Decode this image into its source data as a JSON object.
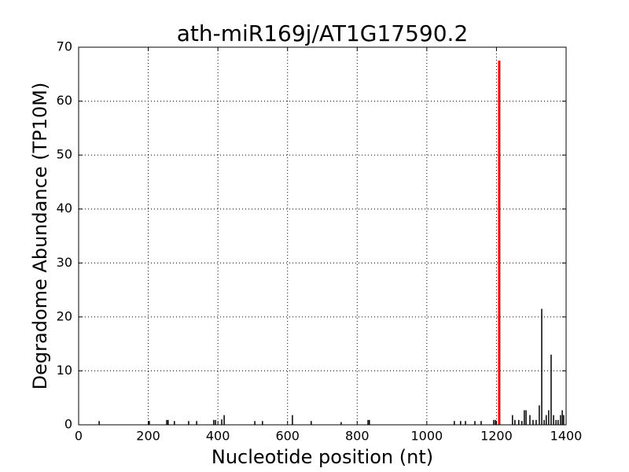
{
  "chart_data": {
    "type": "stem",
    "title": "ath-miR169j/AT1G17590.2",
    "xlabel": "Nucleotide position (nt)",
    "ylabel": "Degradome Abundance (TP10M)",
    "xlim": [
      0,
      1400
    ],
    "ylim": [
      0,
      70
    ],
    "xticks": [
      0,
      200,
      400,
      600,
      800,
      1000,
      1200,
      1400
    ],
    "yticks": [
      0,
      10,
      20,
      30,
      40,
      50,
      60,
      70
    ],
    "grid": true,
    "series": [
      {
        "color": "#000000",
        "x": [
          59,
          203,
          253,
          257,
          275,
          316,
          339,
          388,
          393,
          411,
          418,
          506,
          528,
          614,
          668,
          754,
          831,
          835,
          1079,
          1097,
          1111,
          1138,
          1156,
          1192,
          1197,
          1246,
          1253,
          1264,
          1273,
          1280,
          1285,
          1296,
          1305,
          1314,
          1323,
          1330,
          1337,
          1343,
          1350,
          1357,
          1364,
          1371,
          1377,
          1384,
          1389,
          1393
        ],
        "values": [
          0.7,
          0.7,
          0.9,
          0.9,
          0.7,
          0.7,
          0.7,
          0.9,
          0.9,
          1.0,
          1.8,
          0.7,
          0.7,
          1.8,
          0.7,
          0.5,
          0.9,
          0.9,
          0.7,
          0.7,
          0.7,
          0.7,
          0.7,
          0.9,
          0.9,
          1.8,
          0.9,
          0.9,
          0.7,
          2.7,
          2.7,
          1.8,
          0.9,
          0.9,
          3.6,
          21.5,
          0.9,
          1.8,
          2.7,
          13,
          1.8,
          0.9,
          0.9,
          1.8,
          2.7,
          1.8
        ]
      },
      {
        "color": "#ff0000",
        "x": [
          1208
        ],
        "values": [
          67.5
        ]
      }
    ]
  }
}
